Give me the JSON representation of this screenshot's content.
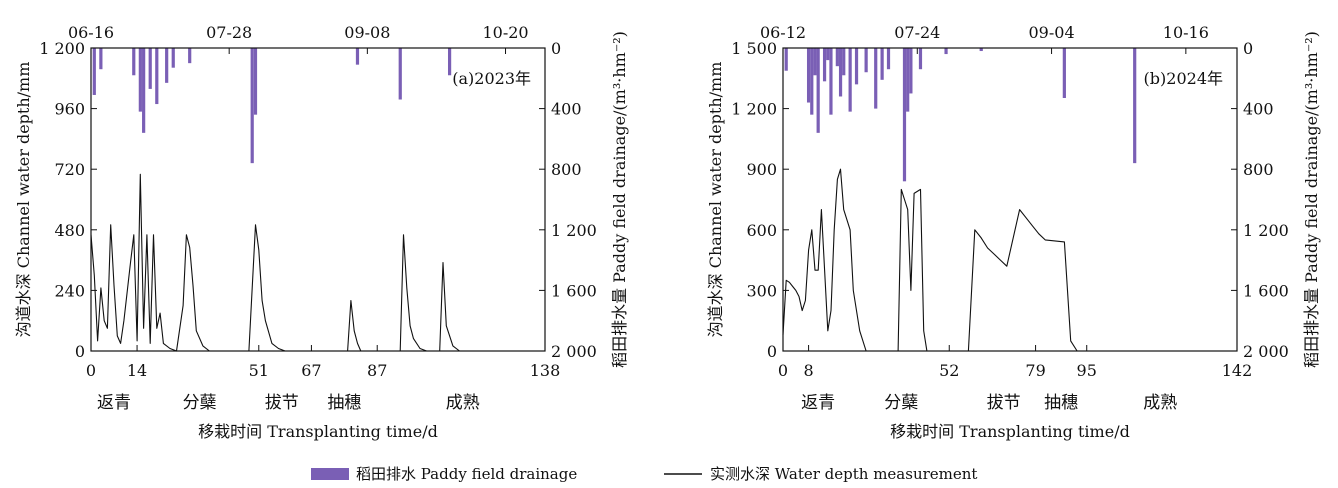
{
  "chart_data": [
    {
      "type": "bar+line",
      "panel_label": "(a)2023年",
      "top_dates": [
        "06-16",
        "07-28",
        "09-08",
        "10-20"
      ],
      "top_date_positions": [
        0,
        42,
        84,
        126
      ],
      "xlim": [
        0,
        138
      ],
      "x_ticks": [
        0,
        14,
        51,
        67,
        87,
        138
      ],
      "stages": [
        {
          "label": "返青",
          "x": 7
        },
        {
          "label": "分蘖",
          "x": 33
        },
        {
          "label": "拔节",
          "x": 58
        },
        {
          "label": "抽穗",
          "x": 77
        },
        {
          "label": "成熟",
          "x": 113
        }
      ],
      "xlabel": "移栽时间 Transplanting time/d",
      "ylabel_left": "沟道水深 Channel water depth/mm",
      "ylabel_right": "稻田排水量 Paddy field drainage/(m³·hm⁻²)",
      "ylim_left": [
        0,
        1200
      ],
      "yticks_left": [
        0,
        240,
        480,
        720,
        960,
        1200
      ],
      "ytick_labels_left": [
        "0",
        "240",
        "480",
        "720",
        "960",
        "1 200"
      ],
      "ylim_right": [
        0,
        2000
      ],
      "yticks_right": [
        0,
        400,
        800,
        1200,
        1600,
        2000
      ],
      "ytick_labels_right": [
        "0",
        "400",
        "800",
        "1 200",
        "1 600",
        "2 000"
      ],
      "drainage": {
        "x": [
          1,
          3,
          13,
          15,
          16,
          18,
          20,
          23,
          25,
          30,
          49,
          50,
          81,
          94,
          109
        ],
        "values": [
          310,
          140,
          180,
          420,
          560,
          270,
          370,
          230,
          130,
          100,
          760,
          440,
          110,
          340,
          180
        ]
      },
      "water_depth": {
        "x": [
          0,
          1,
          2,
          3,
          4,
          5,
          6,
          7,
          8,
          9,
          10,
          12,
          13,
          14,
          15,
          16,
          17,
          18,
          19,
          20,
          21,
          22,
          24,
          26,
          28,
          29,
          30,
          31,
          32,
          34,
          36,
          37,
          38,
          39,
          40,
          41,
          44,
          46,
          48,
          50,
          51,
          52,
          53,
          55,
          57,
          59,
          61,
          63,
          65,
          78,
          79,
          80,
          81,
          82,
          84,
          86,
          94,
          95,
          96,
          97,
          98,
          100,
          102,
          106,
          107,
          108,
          110,
          112,
          114
        ],
        "values": [
          460,
          300,
          40,
          250,
          120,
          90,
          500,
          260,
          60,
          30,
          120,
          350,
          460,
          40,
          700,
          90,
          460,
          30,
          460,
          90,
          150,
          30,
          10,
          0,
          180,
          460,
          410,
          260,
          80,
          20,
          0,
          0,
          0,
          0,
          0,
          0,
          0,
          0,
          0,
          500,
          400,
          200,
          120,
          30,
          10,
          0,
          0,
          0,
          0,
          0,
          200,
          80,
          30,
          0,
          0,
          0,
          0,
          460,
          250,
          100,
          50,
          10,
          0,
          0,
          350,
          100,
          20,
          0,
          0
        ]
      }
    },
    {
      "type": "bar+line",
      "panel_label": "(b)2024年",
      "top_dates": [
        "06-12",
        "07-24",
        "09-04",
        "10-16"
      ],
      "top_date_positions": [
        0,
        42,
        84,
        126
      ],
      "xlim": [
        0,
        142
      ],
      "x_ticks": [
        0,
        8,
        52,
        79,
        95,
        142
      ],
      "stages": [
        {
          "label": "返青",
          "x": 11
        },
        {
          "label": "分蘖",
          "x": 37
        },
        {
          "label": "拔节",
          "x": 69
        },
        {
          "label": "抽穗",
          "x": 87
        },
        {
          "label": "成熟",
          "x": 118
        }
      ],
      "xlabel": "移栽时间 Transplanting time/d",
      "ylabel_left": "沟道水深 Channel water depth/mm",
      "ylabel_right": "稻田排水量 Paddy field drainage/(m³·hm⁻²)",
      "ylim_left": [
        0,
        1500
      ],
      "yticks_left": [
        0,
        300,
        600,
        900,
        1200,
        1500
      ],
      "ytick_labels_left": [
        "0",
        "300",
        "600",
        "900",
        "1 200",
        "1 500"
      ],
      "ylim_right": [
        0,
        2000
      ],
      "yticks_right": [
        0,
        400,
        800,
        1200,
        1600,
        2000
      ],
      "ytick_labels_right": [
        "0",
        "400",
        "800",
        "1 200",
        "1 600",
        "2 000"
      ],
      "drainage": {
        "x": [
          1,
          8,
          9,
          10,
          11,
          13,
          14,
          15,
          17,
          18,
          19,
          21,
          23,
          26,
          29,
          31,
          33,
          38,
          39,
          40,
          43,
          51,
          62,
          88,
          110
        ],
        "values": [
          150,
          360,
          440,
          180,
          560,
          220,
          80,
          440,
          120,
          320,
          180,
          420,
          240,
          160,
          400,
          210,
          140,
          880,
          420,
          300,
          140,
          40,
          20,
          330,
          760
        ]
      },
      "water_depth": {
        "x": [
          0,
          1,
          2,
          3,
          4,
          5,
          6,
          7,
          8,
          9,
          10,
          11,
          12,
          14,
          15,
          16,
          17,
          18,
          19,
          21,
          22,
          24,
          26,
          28,
          30,
          32,
          34,
          35,
          36,
          37,
          38,
          39,
          40,
          41,
          43,
          44,
          45,
          46,
          48,
          50,
          52,
          54,
          56,
          58,
          60,
          62,
          64,
          66,
          68,
          70,
          74,
          76,
          78,
          80,
          82,
          88,
          90,
          92,
          94,
          96,
          98,
          100,
          104,
          105,
          106,
          108,
          110,
          112,
          114,
          116,
          118,
          120,
          122,
          124,
          126,
          128,
          130,
          132,
          134,
          136,
          138,
          140
        ],
        "values": [
          80,
          350,
          340,
          320,
          300,
          270,
          200,
          250,
          500,
          600,
          400,
          400,
          700,
          100,
          200,
          600,
          850,
          900,
          700,
          600,
          300,
          100,
          0,
          0,
          0,
          0,
          0,
          0,
          0,
          800,
          750,
          700,
          300,
          780,
          800,
          100,
          0,
          0,
          0,
          0,
          0,
          0,
          0,
          0,
          600,
          560,
          510,
          480,
          450,
          420,
          700,
          660,
          620,
          580,
          550,
          540,
          50,
          0,
          0,
          0,
          0,
          0,
          0,
          0,
          0,
          0,
          0,
          0,
          0,
          0,
          0,
          0,
          0,
          0,
          0,
          0,
          0,
          0,
          0,
          0,
          0,
          0
        ]
      }
    }
  ],
  "legend": {
    "drainage_label": "稻田排水 Paddy field drainage",
    "depth_label": "实测水深 Water depth measurement"
  },
  "colors": {
    "drainage": "#7a5fb5",
    "line": "#111111",
    "axis": "#111111"
  }
}
